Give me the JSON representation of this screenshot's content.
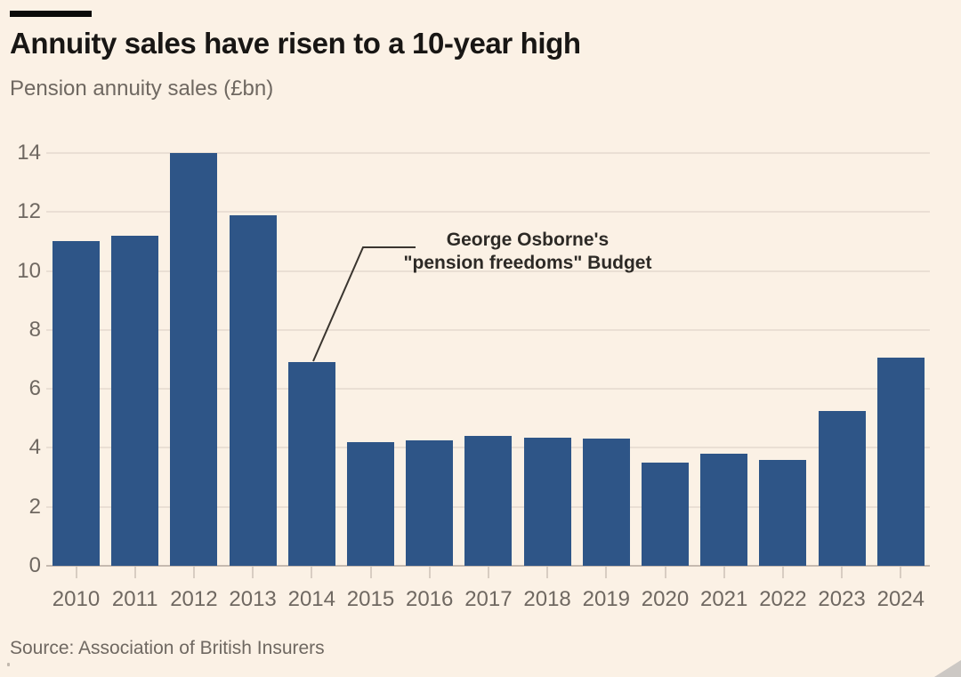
{
  "chart_data": {
    "type": "bar",
    "title": "Annuity sales have risen to a 10-year high",
    "subtitle": "Pension annuity sales (£bn)",
    "categories": [
      "2010",
      "2011",
      "2012",
      "2013",
      "2014",
      "2015",
      "2016",
      "2017",
      "2018",
      "2019",
      "2020",
      "2021",
      "2022",
      "2023",
      "2024"
    ],
    "values": [
      11.0,
      11.2,
      14.0,
      11.9,
      6.9,
      4.2,
      4.25,
      4.4,
      4.35,
      4.3,
      3.5,
      3.8,
      3.6,
      5.25,
      7.05
    ],
    "xlabel": "",
    "ylabel": "",
    "ylim": [
      0,
      14
    ],
    "yticks": [
      0,
      2,
      4,
      6,
      8,
      10,
      12,
      14
    ],
    "grid": "horizontal",
    "legend": "none",
    "annotation": {
      "text_line1": "George Osborne's",
      "text_line2": "\"pension freedoms\" Budget",
      "points_to": "2014"
    },
    "source": "Source: Association of British Insurers"
  },
  "colors": {
    "background": "#fbf1e5",
    "bar": "#2e5587",
    "title_text": "#181614",
    "muted_text": "#6f6861",
    "gridline": "#eadfd4",
    "axis_line": "#c6bab0",
    "annotation_line": "#3a352f",
    "resize_handle": "#ccc8c4"
  }
}
